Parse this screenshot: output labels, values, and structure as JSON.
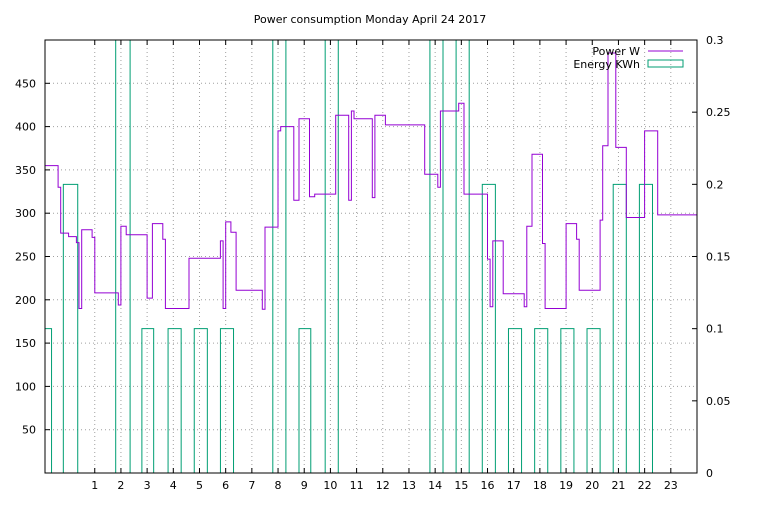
{
  "chart_data": {
    "type": "line",
    "title": "Power consumption Monday April 24 2017",
    "xlim": [
      -0.9,
      24
    ],
    "xticks": [
      1,
      2,
      3,
      4,
      5,
      6,
      7,
      8,
      9,
      10,
      11,
      12,
      13,
      14,
      15,
      16,
      17,
      18,
      19,
      20,
      21,
      22,
      23
    ],
    "ylim": [
      0,
      500
    ],
    "yticks": [
      50,
      100,
      150,
      200,
      250,
      300,
      350,
      400,
      450
    ],
    "y2lim": [
      0,
      0.3
    ],
    "y2ticks": [
      0,
      0.05,
      0.1,
      0.15,
      0.2,
      0.25,
      0.3
    ],
    "y2tick_labels": [
      "0",
      "0.05",
      "0.1",
      "0.15",
      "0.2",
      "0.25",
      "0.3"
    ],
    "grid": true,
    "legend_position": "top-right",
    "series": [
      {
        "name": "Power W",
        "axis": "left",
        "color": "#9400d3",
        "style": "line",
        "points": [
          [
            -0.9,
            355
          ],
          [
            -0.4,
            355
          ],
          [
            -0.4,
            330
          ],
          [
            -0.3,
            330
          ],
          [
            -0.3,
            277
          ],
          [
            0.0,
            277
          ],
          [
            0.0,
            273
          ],
          [
            0.3,
            273
          ],
          [
            0.3,
            266
          ],
          [
            0.4,
            266
          ],
          [
            0.4,
            190
          ],
          [
            0.5,
            190
          ],
          [
            0.5,
            281
          ],
          [
            0.9,
            281
          ],
          [
            0.9,
            272
          ],
          [
            1.0,
            272
          ],
          [
            1.0,
            208
          ],
          [
            1.9,
            208
          ],
          [
            1.9,
            194
          ],
          [
            2.0,
            194
          ],
          [
            2.0,
            285
          ],
          [
            2.2,
            285
          ],
          [
            2.2,
            275
          ],
          [
            3.0,
            275
          ],
          [
            3.0,
            202
          ],
          [
            3.2,
            202
          ],
          [
            3.2,
            288
          ],
          [
            3.6,
            288
          ],
          [
            3.6,
            270
          ],
          [
            3.7,
            270
          ],
          [
            3.7,
            190
          ],
          [
            4.6,
            190
          ],
          [
            4.6,
            248
          ],
          [
            5.8,
            248
          ],
          [
            5.8,
            268
          ],
          [
            5.9,
            268
          ],
          [
            5.9,
            190
          ],
          [
            6.0,
            190
          ],
          [
            6.0,
            290
          ],
          [
            6.2,
            290
          ],
          [
            6.2,
            278
          ],
          [
            6.4,
            278
          ],
          [
            6.4,
            211
          ],
          [
            7.4,
            211
          ],
          [
            7.4,
            189
          ],
          [
            7.5,
            189
          ],
          [
            7.5,
            284
          ],
          [
            8.0,
            284
          ],
          [
            8.0,
            395
          ],
          [
            8.1,
            395
          ],
          [
            8.1,
            400
          ],
          [
            8.6,
            400
          ],
          [
            8.6,
            315
          ],
          [
            8.8,
            315
          ],
          [
            8.8,
            409
          ],
          [
            9.2,
            409
          ],
          [
            9.2,
            319
          ],
          [
            9.4,
            319
          ],
          [
            9.4,
            322
          ],
          [
            10.2,
            322
          ],
          [
            10.2,
            413
          ],
          [
            10.7,
            413
          ],
          [
            10.7,
            315
          ],
          [
            10.8,
            315
          ],
          [
            10.8,
            418
          ],
          [
            10.9,
            418
          ],
          [
            10.9,
            409
          ],
          [
            11.6,
            409
          ],
          [
            11.6,
            318
          ],
          [
            11.7,
            318
          ],
          [
            11.7,
            413
          ],
          [
            12.1,
            413
          ],
          [
            12.1,
            402
          ],
          [
            13.6,
            402
          ],
          [
            13.6,
            345
          ],
          [
            14.1,
            345
          ],
          [
            14.1,
            330
          ],
          [
            14.2,
            330
          ],
          [
            14.2,
            418
          ],
          [
            14.9,
            418
          ],
          [
            14.9,
            427
          ],
          [
            15.1,
            427
          ],
          [
            15.1,
            322
          ],
          [
            16.0,
            322
          ],
          [
            16.0,
            247
          ],
          [
            16.1,
            247
          ],
          [
            16.1,
            192
          ],
          [
            16.2,
            192
          ],
          [
            16.2,
            268
          ],
          [
            16.6,
            268
          ],
          [
            16.6,
            207
          ],
          [
            17.4,
            207
          ],
          [
            17.4,
            192
          ],
          [
            17.5,
            192
          ],
          [
            17.5,
            285
          ],
          [
            17.7,
            285
          ],
          [
            17.7,
            368
          ],
          [
            18.1,
            368
          ],
          [
            18.1,
            265
          ],
          [
            18.2,
            265
          ],
          [
            18.2,
            190
          ],
          [
            19.0,
            190
          ],
          [
            19.0,
            288
          ],
          [
            19.4,
            288
          ],
          [
            19.4,
            270
          ],
          [
            19.5,
            270
          ],
          [
            19.5,
            211
          ],
          [
            20.3,
            211
          ],
          [
            20.3,
            292
          ],
          [
            20.4,
            292
          ],
          [
            20.4,
            378
          ],
          [
            20.6,
            378
          ],
          [
            20.6,
            485
          ],
          [
            20.9,
            485
          ],
          [
            20.9,
            376
          ],
          [
            21.3,
            376
          ],
          [
            21.3,
            295
          ],
          [
            22.0,
            295
          ],
          [
            22.0,
            395
          ],
          [
            22.5,
            395
          ],
          [
            22.5,
            298
          ],
          [
            24.0,
            298
          ]
        ]
      },
      {
        "name": "Energy KWh",
        "axis": "right",
        "color": "#009e73",
        "style": "steps",
        "bars": [
          [
            -0.9,
            -0.65,
            0.1
          ],
          [
            -0.2,
            0.35,
            0.2
          ],
          [
            1.8,
            2.35,
            0.3
          ],
          [
            2.8,
            3.25,
            0.1
          ],
          [
            3.8,
            4.3,
            0.1
          ],
          [
            4.8,
            5.3,
            0.1
          ],
          [
            5.8,
            6.3,
            0.1
          ],
          [
            7.8,
            8.3,
            0.3
          ],
          [
            8.8,
            9.25,
            0.1
          ],
          [
            9.8,
            10.3,
            0.3
          ],
          [
            13.8,
            14.3,
            0.3
          ],
          [
            14.8,
            15.3,
            0.3
          ],
          [
            15.8,
            16.3,
            0.2
          ],
          [
            16.8,
            17.3,
            0.1
          ],
          [
            17.8,
            18.3,
            0.1
          ],
          [
            18.8,
            19.3,
            0.1
          ],
          [
            19.8,
            20.3,
            0.1
          ],
          [
            20.8,
            21.3,
            0.2
          ],
          [
            21.8,
            22.3,
            0.2
          ]
        ]
      }
    ]
  }
}
